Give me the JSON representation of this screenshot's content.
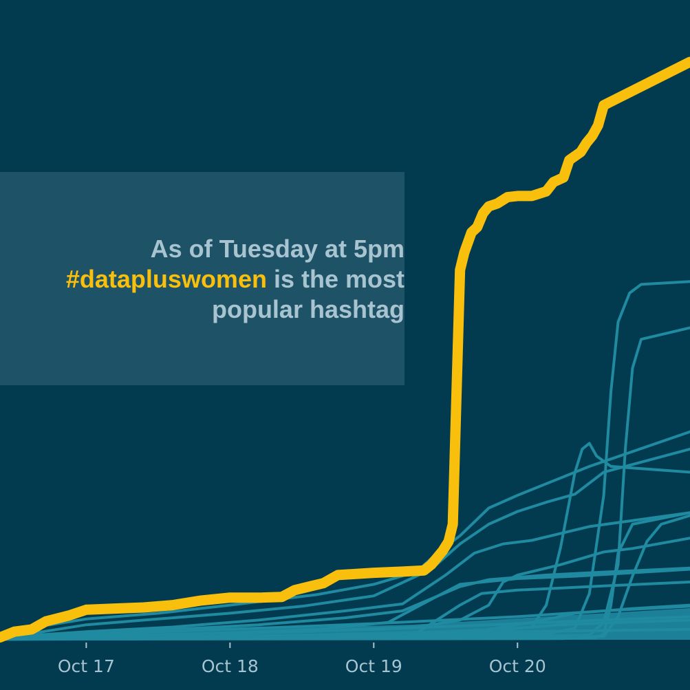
{
  "colors": {
    "background": "#023a4f",
    "highlight": "#f8bf0d",
    "other_series": "#1f8aa0",
    "annotation_box": "#1e5266",
    "annotation_text": "#a8c4d0",
    "tick_text": "#a8c4d0"
  },
  "annotation": {
    "line1": "As of Tuesday at 5pm",
    "hashtag": "#datapluswomen",
    "line2_rest": " is the most",
    "line3": "popular hashtag"
  },
  "chart_data": {
    "type": "line",
    "x_ticks": [
      "Oct 17",
      "Oct 18",
      "Oct 19",
      "Oct 20"
    ],
    "x_tick_values": [
      17,
      18,
      19,
      20
    ],
    "xlim": [
      16.4,
      21.2
    ],
    "ylim": [
      0,
      1000
    ],
    "grid": false,
    "legend": "none",
    "highlight_series": {
      "label": "#datapluswomen",
      "points": [
        [
          16.4,
          4
        ],
        [
          16.5,
          14
        ],
        [
          16.62,
          18
        ],
        [
          16.72,
          32
        ],
        [
          16.88,
          42
        ],
        [
          17.0,
          52
        ],
        [
          17.2,
          54
        ],
        [
          17.4,
          56
        ],
        [
          17.6,
          60
        ],
        [
          17.8,
          68
        ],
        [
          18.0,
          73
        ],
        [
          18.22,
          73
        ],
        [
          18.36,
          74
        ],
        [
          18.45,
          86
        ],
        [
          18.55,
          92
        ],
        [
          18.65,
          98
        ],
        [
          18.75,
          112
        ],
        [
          19.0,
          116
        ],
        [
          19.2,
          118
        ],
        [
          19.35,
          120
        ],
        [
          19.4,
          130
        ],
        [
          19.48,
          154
        ],
        [
          19.52,
          170
        ],
        [
          19.55,
          200
        ],
        [
          19.6,
          640
        ],
        [
          19.63,
          670
        ],
        [
          19.68,
          705
        ],
        [
          19.72,
          714
        ],
        [
          19.76,
          738
        ],
        [
          19.8,
          750
        ],
        [
          19.86,
          755
        ],
        [
          19.93,
          766
        ],
        [
          20.0,
          768
        ],
        [
          20.1,
          768
        ],
        [
          20.2,
          776
        ],
        [
          20.25,
          792
        ],
        [
          20.32,
          800
        ],
        [
          20.36,
          830
        ],
        [
          20.44,
          844
        ],
        [
          20.48,
          860
        ],
        [
          20.52,
          872
        ],
        [
          20.56,
          890
        ],
        [
          20.6,
          925
        ],
        [
          21.2,
          1000
        ]
      ]
    },
    "other_series": [
      {
        "points": [
          [
            16.4,
            8
          ],
          [
            16.6,
            20
          ],
          [
            17.0,
            36
          ],
          [
            17.5,
            46
          ],
          [
            18.0,
            60
          ],
          [
            18.6,
            78
          ],
          [
            19.0,
            96
          ],
          [
            19.3,
            118
          ],
          [
            19.45,
            152
          ],
          [
            19.6,
            180
          ],
          [
            19.8,
            228
          ],
          [
            20.0,
            250
          ],
          [
            20.2,
            270
          ],
          [
            20.5,
            300
          ],
          [
            21.2,
            360
          ]
        ]
      },
      {
        "points": [
          [
            16.4,
            6
          ],
          [
            16.7,
            14
          ],
          [
            17.0,
            26
          ],
          [
            17.4,
            34
          ],
          [
            18.0,
            46
          ],
          [
            18.5,
            58
          ],
          [
            19.0,
            76
          ],
          [
            19.4,
            122
          ],
          [
            19.6,
            166
          ],
          [
            19.8,
            200
          ],
          [
            20.0,
            222
          ],
          [
            20.2,
            238
          ],
          [
            20.4,
            252
          ],
          [
            20.6,
            290
          ],
          [
            21.2,
            330
          ]
        ]
      },
      {
        "points": [
          [
            16.4,
            4
          ],
          [
            17.0,
            14
          ],
          [
            17.6,
            22
          ],
          [
            18.2,
            34
          ],
          [
            18.8,
            50
          ],
          [
            19.2,
            62
          ],
          [
            19.5,
            112
          ],
          [
            19.7,
            150
          ],
          [
            19.9,
            166
          ],
          [
            20.1,
            172
          ],
          [
            20.3,
            184
          ],
          [
            20.5,
            196
          ],
          [
            21.2,
            220
          ]
        ]
      },
      {
        "points": [
          [
            16.4,
            2
          ],
          [
            17.5,
            8
          ],
          [
            18.5,
            14
          ],
          [
            19.3,
            22
          ],
          [
            19.6,
            34
          ],
          [
            19.8,
            60
          ],
          [
            19.9,
            100
          ],
          [
            20.0,
            112
          ],
          [
            20.3,
            130
          ],
          [
            20.6,
            152
          ],
          [
            20.8,
            158
          ],
          [
            21.2,
            176
          ]
        ]
      },
      {
        "points": [
          [
            16.4,
            2
          ],
          [
            18.5,
            8
          ],
          [
            19.5,
            14
          ],
          [
            20.0,
            20
          ],
          [
            20.1,
            22
          ],
          [
            20.2,
            60
          ],
          [
            20.3,
            160
          ],
          [
            20.4,
            290
          ],
          [
            20.45,
            330
          ],
          [
            20.5,
            340
          ],
          [
            20.55,
            318
          ],
          [
            20.65,
            300
          ],
          [
            21.2,
            290
          ]
        ]
      },
      {
        "points": [
          [
            16.4,
            2
          ],
          [
            19.0,
            6
          ],
          [
            20.2,
            10
          ],
          [
            20.4,
            20
          ],
          [
            20.5,
            80
          ],
          [
            20.6,
            250
          ],
          [
            20.65,
            430
          ],
          [
            20.7,
            550
          ],
          [
            20.78,
            600
          ],
          [
            20.86,
            615
          ],
          [
            21.2,
            620
          ]
        ]
      },
      {
        "points": [
          [
            16.4,
            1
          ],
          [
            19.5,
            4
          ],
          [
            20.5,
            8
          ],
          [
            20.6,
            30
          ],
          [
            20.7,
            130
          ],
          [
            20.75,
            330
          ],
          [
            20.8,
            470
          ],
          [
            20.86,
            520
          ],
          [
            21.2,
            540
          ]
        ]
      },
      {
        "points": [
          [
            16.4,
            1
          ],
          [
            20.0,
            4
          ],
          [
            20.6,
            6
          ],
          [
            20.7,
            40
          ],
          [
            20.8,
            110
          ],
          [
            20.9,
            170
          ],
          [
            21.0,
            200
          ],
          [
            21.2,
            215
          ]
        ]
      },
      {
        "points": [
          [
            16.4,
            1
          ],
          [
            20.3,
            2
          ],
          [
            20.55,
            4
          ],
          [
            20.6,
            10
          ],
          [
            20.65,
            60
          ],
          [
            20.7,
            150
          ],
          [
            20.8,
            200
          ],
          [
            21.2,
            220
          ]
        ]
      },
      {
        "points": [
          [
            16.4,
            4
          ],
          [
            17.0,
            10
          ],
          [
            17.6,
            18
          ],
          [
            18.2,
            26
          ],
          [
            18.8,
            38
          ],
          [
            19.2,
            50
          ],
          [
            19.6,
            92
          ],
          [
            19.8,
            104
          ],
          [
            20.2,
            112
          ],
          [
            20.5,
            116
          ],
          [
            21.2,
            124
          ]
        ]
      },
      {
        "points": [
          [
            16.4,
            3
          ],
          [
            17.2,
            6
          ],
          [
            18.0,
            12
          ],
          [
            18.6,
            18
          ],
          [
            19.1,
            30
          ],
          [
            19.4,
            70
          ],
          [
            19.6,
            96
          ],
          [
            20.0,
            106
          ],
          [
            20.4,
            110
          ],
          [
            21.2,
            122
          ]
        ]
      },
      {
        "points": [
          [
            16.4,
            2
          ],
          [
            17.4,
            4
          ],
          [
            18.6,
            8
          ],
          [
            19.3,
            12
          ],
          [
            19.6,
            60
          ],
          [
            19.75,
            80
          ],
          [
            20.0,
            86
          ],
          [
            20.5,
            92
          ],
          [
            21.2,
            100
          ]
        ]
      },
      {
        "points": [
          [
            16.4,
            1
          ],
          [
            18.0,
            4
          ],
          [
            19.0,
            8
          ],
          [
            19.7,
            14
          ],
          [
            20.1,
            30
          ],
          [
            20.4,
            46
          ],
          [
            20.8,
            54
          ],
          [
            21.2,
            60
          ]
        ]
      },
      {
        "points": [
          [
            16.4,
            1
          ],
          [
            18.0,
            2
          ],
          [
            19.0,
            4
          ],
          [
            19.8,
            8
          ],
          [
            20.0,
            20
          ],
          [
            20.3,
            26
          ],
          [
            20.7,
            30
          ],
          [
            21.2,
            34
          ]
        ]
      },
      {
        "points": [
          [
            16.4,
            4
          ],
          [
            16.8,
            8
          ],
          [
            17.5,
            14
          ],
          [
            18.4,
            22
          ],
          [
            19.0,
            28
          ],
          [
            19.5,
            34
          ],
          [
            20.0,
            40
          ],
          [
            20.6,
            50
          ],
          [
            21.2,
            58
          ]
        ]
      },
      {
        "points": [
          [
            16.4,
            2
          ],
          [
            17.0,
            6
          ],
          [
            18.0,
            12
          ],
          [
            19.0,
            18
          ],
          [
            19.8,
            26
          ],
          [
            20.4,
            32
          ],
          [
            21.2,
            40
          ]
        ]
      },
      {
        "points": [
          [
            16.4,
            1
          ],
          [
            17.0,
            3
          ],
          [
            18.0,
            6
          ],
          [
            19.0,
            10
          ],
          [
            20.0,
            14
          ],
          [
            21.2,
            18
          ]
        ]
      }
    ]
  }
}
